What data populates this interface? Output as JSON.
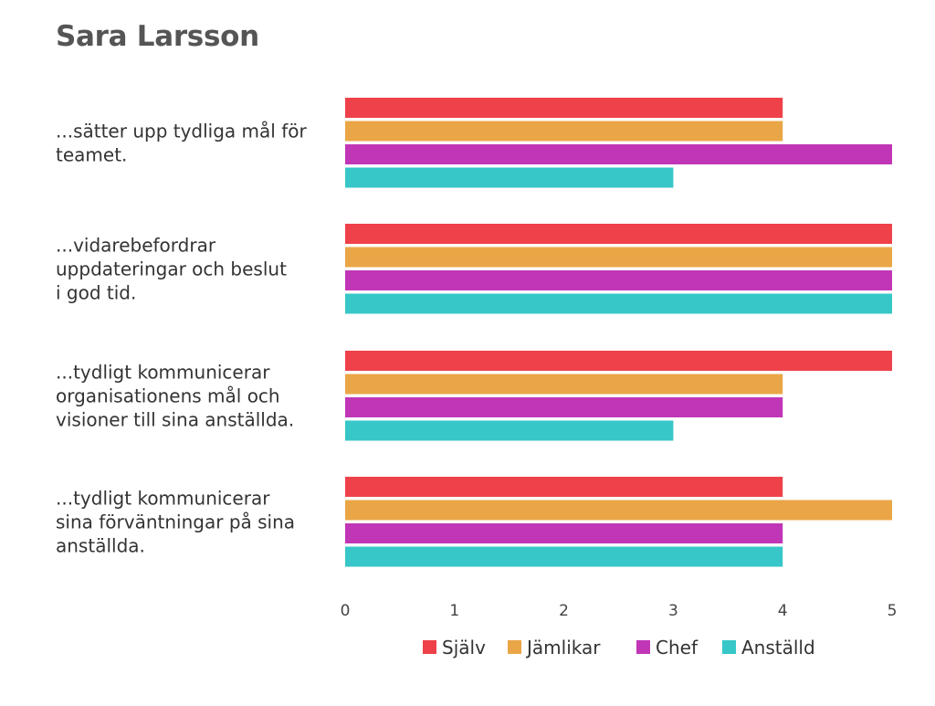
{
  "title": "Sara Larsson",
  "colors": {
    "Själv": "#ee4149",
    "Jämlikar": "#eaa646",
    "Chef": "#c136b7",
    "Anställd": "#37c7c8"
  },
  "chart_data": {
    "type": "bar",
    "orientation": "horizontal",
    "title": "Sara Larsson",
    "categories": [
      [
        "...sätter upp tydliga mål för",
        "teamet."
      ],
      [
        "...vidarebefordrar",
        "uppdateringar och beslut",
        "i god tid."
      ],
      [
        "...tydligt kommunicerar",
        "organisationens mål och",
        "visioner till sina anställda."
      ],
      [
        "...tydligt kommunicerar",
        "sina förväntningar på sina",
        "anställda."
      ]
    ],
    "series": [
      {
        "name": "Själv",
        "values": [
          4,
          5,
          5,
          4
        ]
      },
      {
        "name": "Jämlikar",
        "values": [
          4,
          5,
          4,
          5
        ]
      },
      {
        "name": "Chef",
        "values": [
          5,
          5,
          4,
          4
        ]
      },
      {
        "name": "Anställd",
        "values": [
          3,
          5,
          3,
          4
        ]
      }
    ],
    "xlim": [
      0,
      5
    ],
    "xticks": [
      "0",
      "1",
      "2",
      "3",
      "4",
      "5"
    ],
    "grid": false,
    "legend_position": "bottom"
  }
}
